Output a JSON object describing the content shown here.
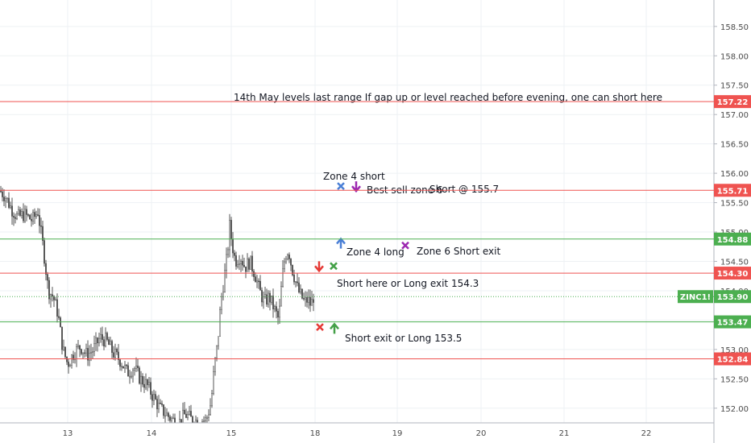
{
  "chart_data": {
    "type": "candlestick",
    "symbol": "ZINC1!",
    "x_ticks": [
      "13",
      "14",
      "15",
      "18",
      "19",
      "20",
      "21",
      "22"
    ],
    "y_ticks": [
      152.0,
      152.5,
      153.0,
      153.5,
      154.0,
      154.5,
      155.0,
      155.5,
      156.0,
      156.5,
      157.0,
      157.5,
      158.0,
      158.5
    ],
    "y_tick_labels": [
      "152.00",
      "152.50",
      "153.00",
      "153.50",
      "154.00",
      "154.50",
      "155.00",
      "155.50",
      "156.00",
      "156.50",
      "157.00",
      "157.50",
      "158.00",
      "158.50"
    ],
    "ylim": [
      151.75,
      158.95
    ],
    "current_price": {
      "label": "ZINC1!",
      "value": 153.9,
      "text": "153.90",
      "color": "#4caf50"
    },
    "levels": [
      {
        "value": 157.22,
        "text": "157.22",
        "color": "#ef5350"
      },
      {
        "value": 155.71,
        "text": "155.71",
        "color": "#ef5350"
      },
      {
        "value": 154.88,
        "text": "154.88",
        "color": "#4caf50"
      },
      {
        "value": 154.3,
        "text": "154.30",
        "color": "#ef5350"
      },
      {
        "value": 153.47,
        "text": "153.47",
        "color": "#4caf50"
      },
      {
        "value": 152.84,
        "text": "152.84",
        "color": "#ef5350"
      }
    ],
    "annotations": [
      "14th May levels last range   If gap up or level reached before evening, one can short here",
      "Zone 4 short",
      "Best sell zone 6",
      "Short @ 155.7",
      "Zone 4 long",
      "Zone 6 Short exit",
      "Short here or Long exit 154.3",
      "Short exit or Long 153.5"
    ],
    "markers": [
      {
        "type": "cross",
        "color": "#4a7fd6",
        "day": "18",
        "value": 155.78
      },
      {
        "type": "arrow-down",
        "color": "#9c27b0",
        "day": "18",
        "value": 155.78
      },
      {
        "type": "arrow-up",
        "color": "#4a7fd6",
        "day": "18",
        "value": 154.8
      },
      {
        "type": "cross",
        "color": "#9c27b0",
        "day": "19",
        "value": 154.77
      },
      {
        "type": "arrow-down",
        "color": "#e53935",
        "day": "18",
        "value": 154.42
      },
      {
        "type": "cross",
        "color": "#43a047",
        "day": "18",
        "value": 154.42
      },
      {
        "type": "cross",
        "color": "#e53935",
        "day": "18",
        "value": 153.38
      },
      {
        "type": "arrow-up",
        "color": "#43a047",
        "day": "18",
        "value": 153.35
      }
    ],
    "price_path": [
      [
        0,
        155.7
      ],
      [
        6,
        155.62
      ],
      [
        14,
        155.4
      ],
      [
        22,
        155.25
      ],
      [
        30,
        155.3
      ],
      [
        40,
        155.2
      ],
      [
        47,
        155.35
      ],
      [
        54,
        154.7
      ],
      [
        60,
        154.0
      ],
      [
        66,
        153.9
      ],
      [
        72,
        153.6
      ],
      [
        78,
        153.0
      ],
      [
        84,
        152.75
      ],
      [
        92,
        152.95
      ],
      [
        100,
        153.05
      ],
      [
        108,
        152.9
      ],
      [
        116,
        153.0
      ],
      [
        124,
        153.2
      ],
      [
        132,
        153.15
      ],
      [
        140,
        152.95
      ],
      [
        150,
        152.8
      ],
      [
        158,
        152.6
      ],
      [
        166,
        152.7
      ],
      [
        174,
        152.5
      ],
      [
        182,
        152.4
      ],
      [
        190,
        152.2
      ],
      [
        198,
        152.0
      ],
      [
        206,
        151.9
      ],
      [
        214,
        151.8
      ],
      [
        222,
        151.75
      ],
      [
        230,
        151.9
      ],
      [
        238,
        151.8
      ],
      [
        246,
        151.78
      ],
      [
        256,
        151.8
      ],
      [
        262,
        152.1
      ],
      [
        266,
        152.7
      ],
      [
        270,
        153.1
      ],
      [
        274,
        153.8
      ],
      [
        278,
        154.2
      ],
      [
        282,
        154.6
      ],
      [
        285,
        155.1
      ],
      [
        288,
        154.8
      ],
      [
        292,
        154.5
      ],
      [
        298,
        154.6
      ],
      [
        304,
        154.4
      ],
      [
        310,
        154.5
      ],
      [
        316,
        154.3
      ],
      [
        322,
        154.0
      ],
      [
        328,
        153.8
      ],
      [
        334,
        153.9
      ],
      [
        340,
        153.7
      ],
      [
        346,
        153.5
      ],
      [
        350,
        154.2
      ],
      [
        354,
        154.6
      ],
      [
        358,
        154.7
      ],
      [
        362,
        154.4
      ],
      [
        366,
        154.2
      ],
      [
        370,
        154.0
      ],
      [
        374,
        153.9
      ],
      [
        378,
        153.8
      ],
      [
        382,
        153.85
      ],
      [
        386,
        153.75
      ],
      [
        389,
        153.9
      ]
    ]
  }
}
